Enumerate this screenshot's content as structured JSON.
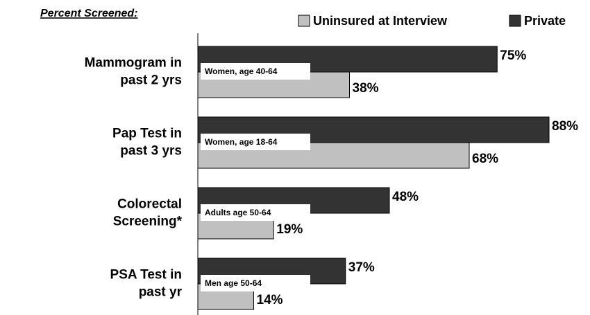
{
  "chart_data": {
    "type": "bar",
    "orientation": "horizontal",
    "title": "Percent Screened:",
    "categories": [
      "Mammogram in\npast 2 yrs",
      "Pap Test in\npast 3 yrs",
      "Colorectal\nScreening*",
      "PSA Test in\npast yr"
    ],
    "annotations": [
      "Women, age 40-64",
      "Women, age 18-64",
      "Adults age 50-64",
      "Men age 50-64"
    ],
    "series": [
      {
        "name": "Private",
        "color": "#333333",
        "values": [
          75,
          88,
          48,
          37
        ],
        "value_labels": [
          "75%",
          "88%",
          "48%",
          "37%"
        ]
      },
      {
        "name": "Uninsured at Interview",
        "color": "#c0c0c0",
        "values": [
          38,
          68,
          19,
          14
        ],
        "value_labels": [
          "38%",
          "68%",
          "19%",
          "14%"
        ]
      }
    ],
    "legend": "top-right"
  }
}
